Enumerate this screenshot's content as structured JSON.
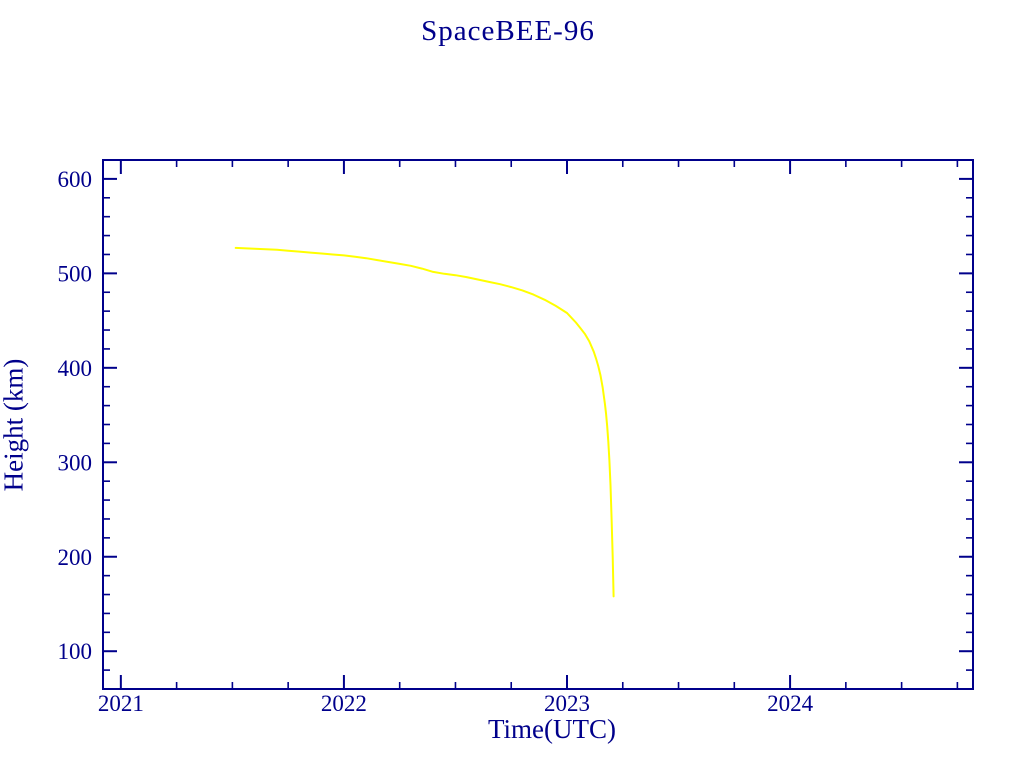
{
  "page": {
    "background_color": "#FFFFFF"
  },
  "chart_data": {
    "type": "line",
    "title": "SpaceBEE-96",
    "xlabel": "Time(UTC)",
    "ylabel": "Height (km)",
    "xlim": [
      2020.92,
      2024.82
    ],
    "ylim": [
      60,
      620
    ],
    "x_major_ticks": [
      2021,
      2022,
      2023,
      2024
    ],
    "x_tick_labels": [
      "2021",
      "2022",
      "2023",
      "2024"
    ],
    "x_minor_step": 0.25,
    "y_major_ticks": [
      100,
      200,
      300,
      400,
      500,
      600
    ],
    "y_tick_labels": [
      "100",
      "200",
      "300",
      "400",
      "500",
      "600"
    ],
    "y_minor_step": 20,
    "grid": false,
    "legend": "none",
    "colors": {
      "axis": "#00008B",
      "text": "#00008B",
      "line": "#FFFF00",
      "background": "#FFFFFF"
    },
    "series": [
      {
        "name": "height_km_vs_time",
        "points": [
          [
            2021.515,
            527
          ],
          [
            2021.55,
            526.5
          ],
          [
            2021.6,
            526
          ],
          [
            2021.65,
            525.5
          ],
          [
            2021.7,
            525
          ],
          [
            2021.75,
            524
          ],
          [
            2021.8,
            523
          ],
          [
            2021.85,
            522
          ],
          [
            2021.9,
            521
          ],
          [
            2021.95,
            520
          ],
          [
            2022.0,
            519
          ],
          [
            2022.05,
            517.5
          ],
          [
            2022.1,
            516
          ],
          [
            2022.15,
            514
          ],
          [
            2022.2,
            512
          ],
          [
            2022.25,
            510
          ],
          [
            2022.3,
            508
          ],
          [
            2022.35,
            505
          ],
          [
            2022.4,
            501.5
          ],
          [
            2022.45,
            499.5
          ],
          [
            2022.5,
            498
          ],
          [
            2022.55,
            496
          ],
          [
            2022.6,
            493.5
          ],
          [
            2022.65,
            491
          ],
          [
            2022.7,
            488.5
          ],
          [
            2022.75,
            485.5
          ],
          [
            2022.8,
            482
          ],
          [
            2022.85,
            477.5
          ],
          [
            2022.9,
            472
          ],
          [
            2022.95,
            465.5
          ],
          [
            2023.0,
            458
          ],
          [
            2023.02,
            453
          ],
          [
            2023.04,
            448
          ],
          [
            2023.06,
            442
          ],
          [
            2023.08,
            436
          ],
          [
            2023.1,
            428
          ],
          [
            2023.12,
            417
          ],
          [
            2023.13,
            410
          ],
          [
            2023.14,
            402
          ],
          [
            2023.15,
            392
          ],
          [
            2023.16,
            379
          ],
          [
            2023.17,
            362
          ],
          [
            2023.175,
            352
          ],
          [
            2023.18,
            338
          ],
          [
            2023.185,
            322
          ],
          [
            2023.19,
            302
          ],
          [
            2023.195,
            276
          ],
          [
            2023.2,
            240
          ],
          [
            2023.205,
            200
          ],
          [
            2023.209,
            158
          ]
        ]
      }
    ]
  }
}
